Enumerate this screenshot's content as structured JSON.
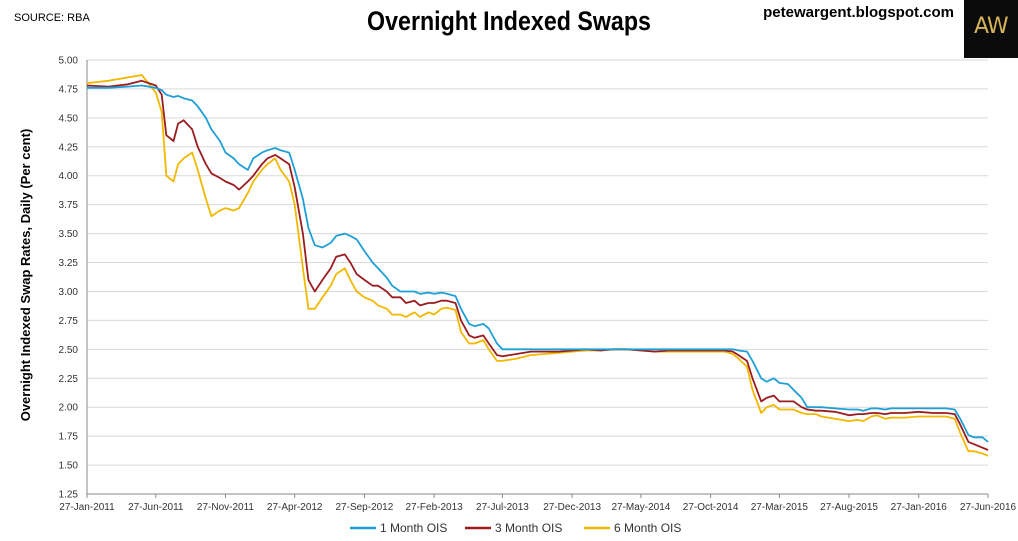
{
  "source": "SOURCE: RBA",
  "blog": "petewargent.blogspot.com",
  "logo_text": "AW",
  "chart_data": {
    "type": "line",
    "title": "Overnight Indexed Swaps",
    "ylabel": "Overnight Indexed Swap Rates, Daily  (Per cent)",
    "xlabel": "",
    "ylim": [
      1.25,
      5.0
    ],
    "yticks": [
      "1.25",
      "1.50",
      "1.75",
      "2.00",
      "2.25",
      "2.50",
      "2.75",
      "3.00",
      "3.25",
      "3.50",
      "3.75",
      "4.00",
      "4.25",
      "4.50",
      "4.75",
      "5.00"
    ],
    "xticks": [
      "27-Jan-2011",
      "27-Jun-2011",
      "27-Nov-2011",
      "27-Apr-2012",
      "27-Sep-2012",
      "27-Feb-2013",
      "27-Jul-2013",
      "27-Dec-2013",
      "27-May-2014",
      "27-Oct-2014",
      "27-Mar-2015",
      "27-Aug-2015",
      "27-Jan-2016",
      "27-Jun-2016"
    ],
    "x": [
      "27-Jan-2011",
      "15-Mar-2011",
      "27-Apr-2011",
      "27-May-2011",
      "27-Jun-2011",
      "10-Jul-2011",
      "20-Jul-2011",
      "5-Aug-2011",
      "15-Aug-2011",
      "27-Aug-2011",
      "15-Sep-2011",
      "27-Sep-2011",
      "15-Oct-2011",
      "27-Oct-2011",
      "15-Nov-2011",
      "27-Nov-2011",
      "15-Dec-2011",
      "27-Dec-2011",
      "15-Jan-2012",
      "27-Jan-2012",
      "15-Feb-2012",
      "27-Feb-2012",
      "15-Mar-2012",
      "27-Mar-2012",
      "15-Apr-2012",
      "27-Apr-2012",
      "15-May-2012",
      "27-May-2012",
      "10-Jun-2012",
      "27-Jun-2012",
      "15-Jul-2012",
      "27-Jul-2012",
      "15-Aug-2012",
      "27-Aug-2012",
      "10-Sep-2012",
      "27-Sep-2012",
      "15-Oct-2012",
      "27-Oct-2012",
      "15-Nov-2012",
      "27-Nov-2012",
      "15-Dec-2012",
      "27-Dec-2012",
      "15-Jan-2013",
      "27-Jan-2013",
      "15-Feb-2013",
      "27-Feb-2013",
      "15-Mar-2013",
      "27-Mar-2013",
      "15-Apr-2013",
      "27-Apr-2013",
      "15-May-2013",
      "27-May-2013",
      "15-Jun-2013",
      "27-Jun-2013",
      "15-Jul-2013",
      "27-Jul-2013",
      "27-Aug-2013",
      "27-Sep-2013",
      "27-Oct-2013",
      "27-Nov-2013",
      "27-Dec-2013",
      "27-Jan-2014",
      "27-Feb-2014",
      "27-Mar-2014",
      "27-Apr-2014",
      "27-May-2014",
      "27-Jun-2014",
      "27-Jul-2014",
      "27-Aug-2014",
      "27-Sep-2014",
      "27-Oct-2014",
      "27-Nov-2014",
      "15-Dec-2014",
      "27-Dec-2014",
      "15-Jan-2015",
      "27-Jan-2015",
      "15-Feb-2015",
      "27-Feb-2015",
      "15-Mar-2015",
      "27-Mar-2015",
      "15-Apr-2015",
      "27-Apr-2015",
      "15-May-2015",
      "27-May-2015",
      "15-Jun-2015",
      "27-Jun-2015",
      "27-Jul-2015",
      "27-Aug-2015",
      "15-Sep-2015",
      "27-Sep-2015",
      "15-Oct-2015",
      "27-Oct-2015",
      "15-Nov-2015",
      "27-Nov-2015",
      "27-Dec-2015",
      "27-Jan-2016",
      "27-Feb-2016",
      "27-Mar-2016",
      "15-Apr-2016",
      "27-Apr-2016",
      "15-May-2016",
      "27-May-2016",
      "15-Jun-2016",
      "27-Jun-2016"
    ],
    "series": [
      {
        "name": "1 Month OIS",
        "color": "#1f9fd6",
        "values": [
          4.76,
          4.76,
          4.77,
          4.78,
          4.76,
          4.74,
          4.7,
          4.68,
          4.69,
          4.67,
          4.65,
          4.6,
          4.5,
          4.4,
          4.3,
          4.2,
          4.15,
          4.1,
          4.05,
          4.15,
          4.2,
          4.22,
          4.24,
          4.22,
          4.2,
          4.05,
          3.8,
          3.55,
          3.4,
          3.38,
          3.42,
          3.48,
          3.5,
          3.48,
          3.45,
          3.35,
          3.25,
          3.2,
          3.12,
          3.05,
          3.0,
          3.0,
          3.0,
          2.98,
          2.99,
          2.98,
          2.99,
          2.98,
          2.96,
          2.85,
          2.72,
          2.7,
          2.72,
          2.68,
          2.55,
          2.5,
          2.5,
          2.5,
          2.5,
          2.5,
          2.5,
          2.5,
          2.5,
          2.5,
          2.5,
          2.5,
          2.5,
          2.5,
          2.5,
          2.5,
          2.5,
          2.5,
          2.5,
          2.49,
          2.48,
          2.4,
          2.25,
          2.22,
          2.25,
          2.21,
          2.2,
          2.15,
          2.08,
          2.0,
          2.0,
          2.0,
          1.99,
          1.98,
          1.98,
          1.97,
          1.99,
          1.99,
          1.98,
          1.99,
          1.99,
          1.99,
          1.99,
          1.99,
          1.98,
          1.9,
          1.76,
          1.74,
          1.74,
          1.7
        ]
      },
      {
        "name": "3 Month OIS",
        "color": "#9b1c1f",
        "values": [
          4.78,
          4.77,
          4.79,
          4.82,
          4.78,
          4.7,
          4.35,
          4.3,
          4.45,
          4.48,
          4.4,
          4.25,
          4.1,
          4.02,
          3.98,
          3.95,
          3.92,
          3.88,
          3.95,
          4.0,
          4.1,
          4.15,
          4.18,
          4.15,
          4.1,
          3.9,
          3.5,
          3.1,
          3.0,
          3.1,
          3.2,
          3.3,
          3.32,
          3.25,
          3.15,
          3.1,
          3.05,
          3.05,
          3.0,
          2.95,
          2.95,
          2.9,
          2.92,
          2.88,
          2.9,
          2.9,
          2.92,
          2.92,
          2.9,
          2.75,
          2.62,
          2.6,
          2.62,
          2.55,
          2.45,
          2.44,
          2.46,
          2.48,
          2.48,
          2.48,
          2.49,
          2.5,
          2.49,
          2.5,
          2.5,
          2.49,
          2.48,
          2.49,
          2.49,
          2.49,
          2.49,
          2.49,
          2.48,
          2.45,
          2.4,
          2.25,
          2.05,
          2.08,
          2.1,
          2.05,
          2.05,
          2.05,
          2.0,
          1.98,
          1.97,
          1.97,
          1.96,
          1.93,
          1.94,
          1.94,
          1.95,
          1.95,
          1.94,
          1.95,
          1.95,
          1.96,
          1.95,
          1.95,
          1.94,
          1.85,
          1.7,
          1.68,
          1.65,
          1.63
        ]
      },
      {
        "name": "6 Month OIS",
        "color": "#f2b800",
        "values": [
          4.8,
          4.82,
          4.85,
          4.87,
          4.72,
          4.55,
          4.0,
          3.95,
          4.1,
          4.15,
          4.2,
          4.05,
          3.8,
          3.65,
          3.7,
          3.72,
          3.7,
          3.72,
          3.85,
          3.95,
          4.05,
          4.1,
          4.15,
          4.05,
          3.95,
          3.75,
          3.2,
          2.85,
          2.85,
          2.95,
          3.05,
          3.15,
          3.2,
          3.1,
          3.0,
          2.95,
          2.92,
          2.88,
          2.85,
          2.8,
          2.8,
          2.78,
          2.82,
          2.78,
          2.82,
          2.8,
          2.85,
          2.86,
          2.84,
          2.65,
          2.55,
          2.55,
          2.58,
          2.5,
          2.4,
          2.4,
          2.42,
          2.45,
          2.46,
          2.47,
          2.48,
          2.49,
          2.49,
          2.5,
          2.5,
          2.49,
          2.48,
          2.48,
          2.48,
          2.48,
          2.48,
          2.48,
          2.46,
          2.42,
          2.35,
          2.15,
          1.95,
          2.0,
          2.02,
          1.98,
          1.98,
          1.98,
          1.95,
          1.94,
          1.94,
          1.92,
          1.9,
          1.88,
          1.89,
          1.88,
          1.92,
          1.93,
          1.9,
          1.91,
          1.91,
          1.92,
          1.92,
          1.92,
          1.9,
          1.78,
          1.62,
          1.62,
          1.6,
          1.58
        ]
      }
    ],
    "legend": "bottom",
    "grid": "horizontal"
  }
}
